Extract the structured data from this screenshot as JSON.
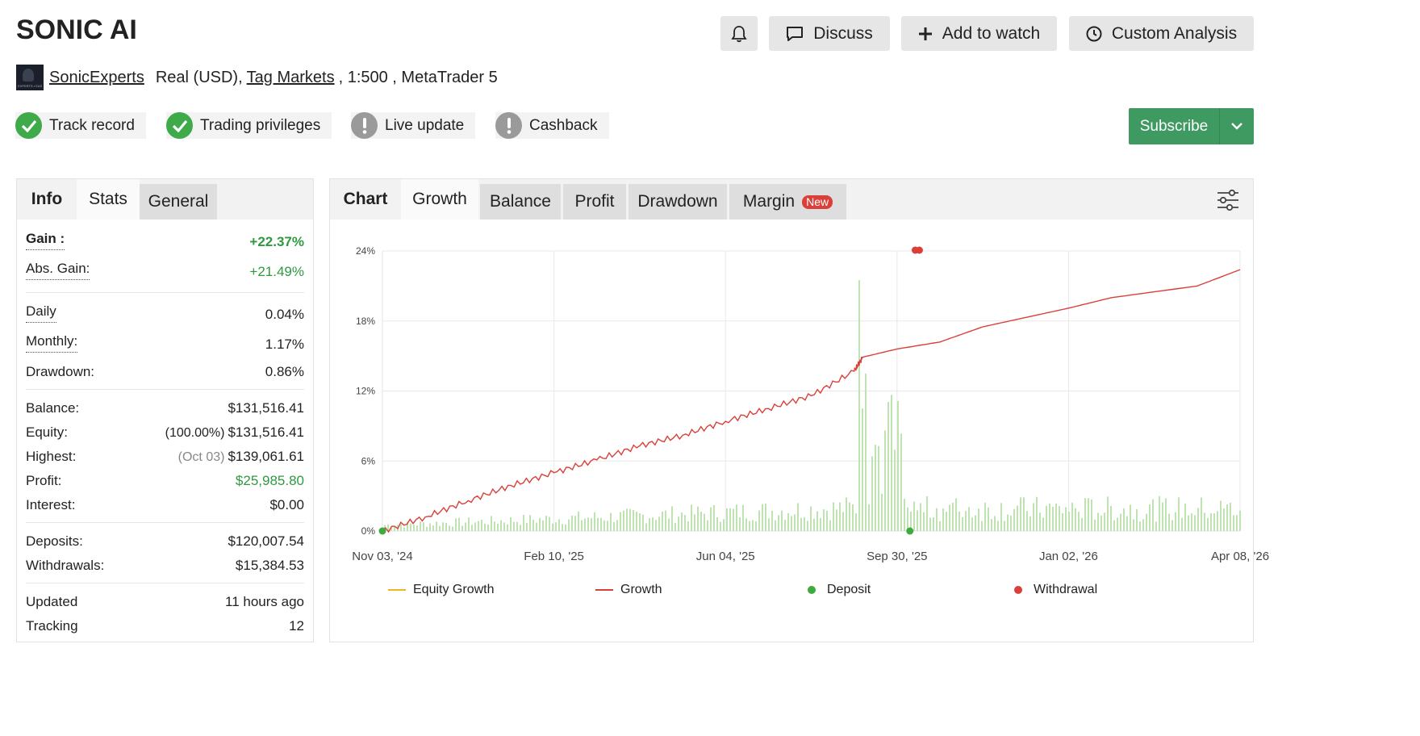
{
  "title": "SONIC AI",
  "top_buttons": {
    "bell_icon": "bell-icon",
    "discuss": "Discuss",
    "add_to_watch": "Add to watch",
    "custom_analysis": "Custom Analysis"
  },
  "account": {
    "avatar_text": "EXPERTS ▪ EAS",
    "author": "SonicExperts",
    "type_prefix": "Real (USD),",
    "broker": "Tag Markets",
    "details": ", 1:500 , MetaTrader 5"
  },
  "badges": [
    {
      "label": "Track record",
      "status": "ok"
    },
    {
      "label": "Trading privileges",
      "status": "ok"
    },
    {
      "label": "Live update",
      "status": "warn"
    },
    {
      "label": "Cashback",
      "status": "warn"
    }
  ],
  "subscribe": {
    "label": "Subscribe"
  },
  "info_panel": {
    "tabs": [
      "Info",
      "Stats",
      "General"
    ],
    "gain_label": "Gain :",
    "gain_value": "+22.37%",
    "abs_gain_label": "Abs. Gain:",
    "abs_gain_value": "+21.49%",
    "daily_label": "Daily",
    "daily_value": "0.04%",
    "monthly_label": "Monthly:",
    "monthly_value": "1.17%",
    "drawdown_label": "Drawdown:",
    "drawdown_value": "0.86%",
    "balance_label": "Balance:",
    "balance_value": "$131,516.41",
    "equity_label": "Equity:",
    "equity_pct": "(100.00%)",
    "equity_value": "$131,516.41",
    "highest_label": "Highest:",
    "highest_date": "(Oct 03)",
    "highest_value": "$139,061.61",
    "profit_label": "Profit:",
    "profit_value": "$25,985.80",
    "interest_label": "Interest:",
    "interest_value": "$0.00",
    "deposits_label": "Deposits:",
    "deposits_value": "$120,007.54",
    "withdrawals_label": "Withdrawals:",
    "withdrawals_value": "$15,384.53",
    "updated_label": "Updated",
    "updated_value": "11 hours ago",
    "tracking_label": "Tracking",
    "tracking_value": "12"
  },
  "chart_panel": {
    "tabs": [
      "Chart",
      "Growth",
      "Balance",
      "Profit",
      "Drawdown",
      "Margin"
    ],
    "new_tag": "New",
    "settings_icon": "sliders-icon"
  },
  "colors": {
    "green": "#2e9a3f",
    "growth_line": "#d9403a",
    "equity_line": "#f0b429",
    "deposit": "#3faa3f",
    "withdrawal": "#d9403a",
    "bars": "#bfe3b0",
    "subscribe": "#3f9a62"
  },
  "chart_data": {
    "type": "line",
    "y_ticks": [
      "24%",
      "18%",
      "12%",
      "6%",
      "0%"
    ],
    "ylim": [
      0,
      24
    ],
    "x_ticks": [
      "Nov 03, '24",
      "Feb 10, '25",
      "Jun 04, '25",
      "Sep 30, '25",
      "Jan 02, '26",
      "Apr 08, '26"
    ],
    "grid": true,
    "legend_position": "bottom",
    "legend": [
      "Equity Growth",
      "Growth",
      "Deposit",
      "Withdrawal"
    ],
    "series": [
      {
        "name": "Growth",
        "x": [
          0,
          0.05,
          0.1,
          0.15,
          0.2,
          0.25,
          0.3,
          0.35,
          0.4,
          0.45,
          0.5,
          0.55,
          0.56,
          0.6,
          0.65,
          0.7,
          0.75,
          0.8,
          0.85,
          0.9,
          0.95,
          1.0
        ],
        "values": [
          0.0,
          1.2,
          2.6,
          3.9,
          5.0,
          6.1,
          7.3,
          8.2,
          9.4,
          10.5,
          11.6,
          13.7,
          14.9,
          15.6,
          16.2,
          17.5,
          18.3,
          19.1,
          20.0,
          20.5,
          21.0,
          22.4
        ]
      }
    ],
    "events": [
      {
        "type": "Deposit",
        "x": 0.0
      },
      {
        "type": "Deposit",
        "x": 0.615
      },
      {
        "type": "Withdrawal",
        "x": 0.61
      }
    ]
  }
}
